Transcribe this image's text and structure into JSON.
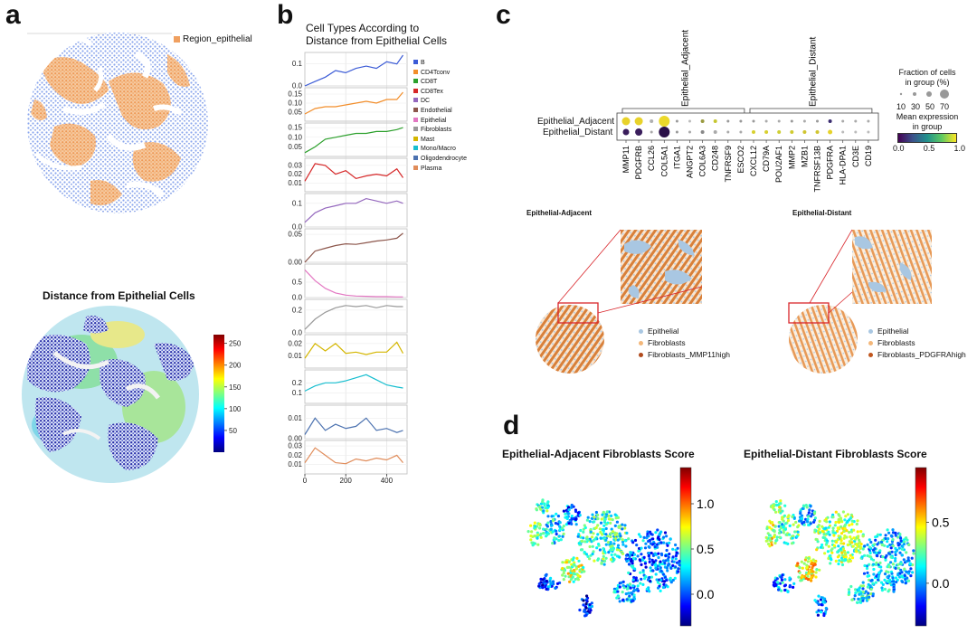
{
  "panel_labels": {
    "a": "a",
    "b": "b",
    "c": "c",
    "d": "d"
  },
  "colors": {
    "epithelial": "#f0a060",
    "blue_cells": "#8ca8ef",
    "fibro_adj": "#d87a34",
    "tissue_blue": "#a9c7e2",
    "line_grid": "#d9d9d9"
  },
  "panel_a": {
    "legend_label": "Region_epithelial",
    "distance_title": "Distance from Epithelial Cells",
    "colorbar": {
      "ticks": [
        "250",
        "200",
        "150",
        "100",
        "50"
      ],
      "min": 0,
      "max": 270
    }
  },
  "panel_b": {
    "title_line1": "Cell Types According to",
    "title_line2": "Distance from Epithelial Cells",
    "x_ticks": [
      "0",
      "200",
      "400"
    ],
    "legend": [
      {
        "name": "B",
        "color": "#3b5bd6"
      },
      {
        "name": "CD4Tconv",
        "color": "#f28e2b"
      },
      {
        "name": "CD8T",
        "color": "#2ca02c"
      },
      {
        "name": "CD8Tex",
        "color": "#d62728"
      },
      {
        "name": "DC",
        "color": "#9467bd"
      },
      {
        "name": "Endothelial",
        "color": "#8c564b"
      },
      {
        "name": "Epithelial",
        "color": "#e377c2"
      },
      {
        "name": "Fibroblasts",
        "color": "#999999"
      },
      {
        "name": "Mast",
        "color": "#d4b600"
      },
      {
        "name": "Mono/Macro",
        "color": "#17becf"
      },
      {
        "name": "Oligodendrocyte",
        "color": "#4c72b0"
      },
      {
        "name": "Plasma",
        "color": "#e08c5a"
      }
    ]
  },
  "chart_data": {
    "type": "line",
    "title": "Cell Types According to Distance from Epithelial Cells",
    "xlabel": "",
    "ylabel": "",
    "x": [
      0,
      50,
      100,
      150,
      200,
      250,
      300,
      350,
      400,
      450,
      480
    ],
    "xlim": [
      0,
      500
    ],
    "series": [
      {
        "name": "B",
        "color": "#3b5bd6",
        "ylim": [
          0,
          0.14
        ],
        "yticks": [
          "0.1",
          "0.0"
        ],
        "ytick_values": [
          0.1,
          0.0
        ],
        "values": [
          0.0,
          0.02,
          0.04,
          0.07,
          0.06,
          0.08,
          0.09,
          0.08,
          0.11,
          0.1,
          0.14
        ]
      },
      {
        "name": "CD4Tconv",
        "color": "#f28e2b",
        "ylim": [
          0,
          0.17
        ],
        "yticks": [
          "0.15",
          "0.10",
          "0.05"
        ],
        "ytick_values": [
          0.15,
          0.1,
          0.05
        ],
        "values": [
          0.04,
          0.07,
          0.08,
          0.08,
          0.09,
          0.1,
          0.11,
          0.1,
          0.12,
          0.12,
          0.16
        ]
      },
      {
        "name": "CD8T",
        "color": "#2ca02c",
        "ylim": [
          0,
          0.16
        ],
        "yticks": [
          "0.15",
          "0.10",
          "0.05"
        ],
        "ytick_values": [
          0.15,
          0.1,
          0.05
        ],
        "values": [
          0.02,
          0.05,
          0.09,
          0.1,
          0.11,
          0.12,
          0.12,
          0.13,
          0.13,
          0.14,
          0.15
        ]
      },
      {
        "name": "CD8Tex",
        "color": "#d62728",
        "ylim": [
          0,
          0.035
        ],
        "yticks": [
          "0.03",
          "0.02",
          "0.01"
        ],
        "ytick_values": [
          0.03,
          0.02,
          0.01
        ],
        "values": [
          0.012,
          0.032,
          0.03,
          0.02,
          0.024,
          0.015,
          0.018,
          0.02,
          0.018,
          0.026,
          0.016
        ]
      },
      {
        "name": "DC",
        "color": "#9467bd",
        "ylim": [
          0,
          0.13
        ],
        "yticks": [
          "0.1",
          "0.0"
        ],
        "ytick_values": [
          0.1,
          0.0
        ],
        "values": [
          0.02,
          0.06,
          0.08,
          0.09,
          0.1,
          0.1,
          0.12,
          0.11,
          0.1,
          0.11,
          0.1
        ]
      },
      {
        "name": "Endothelial",
        "color": "#8c564b",
        "ylim": [
          0,
          0.055
        ],
        "yticks": [
          "0.05",
          "0.00"
        ],
        "ytick_values": [
          0.05,
          0.0
        ],
        "values": [
          0.0,
          0.02,
          0.025,
          0.03,
          0.033,
          0.032,
          0.035,
          0.038,
          0.04,
          0.043,
          0.052
        ]
      },
      {
        "name": "Epithelial",
        "color": "#e377c2",
        "ylim": [
          0,
          1.0
        ],
        "yticks": [
          "0.5",
          "0.0"
        ],
        "ytick_values": [
          0.5,
          0.0
        ],
        "values": [
          0.9,
          0.55,
          0.3,
          0.15,
          0.08,
          0.05,
          0.04,
          0.03,
          0.03,
          0.02,
          0.02
        ]
      },
      {
        "name": "Fibroblasts",
        "color": "#999999",
        "ylim": [
          0,
          0.27
        ],
        "yticks": [
          "0.2",
          "0.0"
        ],
        "ytick_values": [
          0.2,
          0.0
        ],
        "values": [
          0.03,
          0.12,
          0.18,
          0.22,
          0.24,
          0.23,
          0.24,
          0.22,
          0.24,
          0.23,
          0.23
        ]
      },
      {
        "name": "Mast",
        "color": "#d4b600",
        "ylim": [
          0,
          0.025
        ],
        "yticks": [
          "0.02",
          "0.01"
        ],
        "ytick_values": [
          0.02,
          0.01
        ],
        "values": [
          0.008,
          0.02,
          0.014,
          0.02,
          0.012,
          0.013,
          0.011,
          0.013,
          0.013,
          0.021,
          0.012
        ]
      },
      {
        "name": "Mono/Macro",
        "color": "#17becf",
        "ylim": [
          0,
          0.3
        ],
        "yticks": [
          "0.2",
          "0.1"
        ],
        "ytick_values": [
          0.2,
          0.1
        ],
        "values": [
          0.12,
          0.17,
          0.2,
          0.2,
          0.22,
          0.25,
          0.28,
          0.23,
          0.18,
          0.16,
          0.15
        ]
      },
      {
        "name": "Oligodendrocyte",
        "color": "#4c72b0",
        "ylim": [
          0,
          0.015
        ],
        "yticks": [
          "0.01",
          "0.00"
        ],
        "ytick_values": [
          0.01,
          0.0
        ],
        "values": [
          0.002,
          0.01,
          0.004,
          0.007,
          0.005,
          0.006,
          0.01,
          0.004,
          0.005,
          0.003,
          0.004
        ]
      },
      {
        "name": "Plasma",
        "color": "#e08c5a",
        "ylim": [
          0,
          0.033
        ],
        "yticks": [
          "0.03",
          "0.02",
          "0.01"
        ],
        "ytick_values": [
          0.03,
          0.02,
          0.01
        ],
        "values": [
          0.012,
          0.028,
          0.02,
          0.012,
          0.011,
          0.016,
          0.014,
          0.017,
          0.015,
          0.02,
          0.012
        ]
      }
    ]
  },
  "panel_c": {
    "dotplot": {
      "group_label_adjacent": "Epithelial_Adjacent",
      "group_label_distant": "Epithelial_Distant",
      "rows": [
        "Epithelial_Adjacent",
        "Epithelial_Distant"
      ],
      "genes_adjacent": [
        "MMP11",
        "PDGFRB",
        "CCL26",
        "COL5A1",
        "ITGA1",
        "ANGPT2",
        "COL6A3",
        "CD248",
        "TNFRSF9",
        "ESCO2"
      ],
      "genes_distant": [
        "CXCL12",
        "CD79A",
        "POU2AF1",
        "MMP2",
        "MZB1",
        "TNFRSF13B",
        "PDGFRA",
        "HLA-DPA1",
        "CD3E",
        "CD19"
      ],
      "adjacent_row": [
        {
          "size": 8,
          "color": "#e8d22a"
        },
        {
          "size": 8,
          "color": "#e8d22a"
        },
        {
          "size": 3,
          "color": "#b0b0b0"
        },
        {
          "size": 11,
          "color": "#ecd92a"
        },
        {
          "size": 2,
          "color": "#999"
        },
        {
          "size": 2,
          "color": "#bbb"
        },
        {
          "size": 3,
          "color": "#9a9a40"
        },
        {
          "size": 3,
          "color": "#c6c630"
        },
        {
          "size": 2,
          "color": "#999"
        },
        {
          "size": 2,
          "color": "#999"
        },
        {
          "size": 2,
          "color": "#999"
        },
        {
          "size": 2,
          "color": "#aaa"
        },
        {
          "size": 2,
          "color": "#aaa"
        },
        {
          "size": 2,
          "color": "#999"
        },
        {
          "size": 2,
          "color": "#aaa"
        },
        {
          "size": 2,
          "color": "#999"
        },
        {
          "size": 3,
          "color": "#3b2d70"
        },
        {
          "size": 2,
          "color": "#aaa"
        },
        {
          "size": 2,
          "color": "#aaa"
        },
        {
          "size": 2,
          "color": "#aaa"
        }
      ],
      "distant_row": [
        {
          "size": 6,
          "color": "#3a1e5c"
        },
        {
          "size": 7,
          "color": "#3a1e5c"
        },
        {
          "size": 2,
          "color": "#aaa"
        },
        {
          "size": 11,
          "color": "#2a0f48"
        },
        {
          "size": 2,
          "color": "#999"
        },
        {
          "size": 2,
          "color": "#aaa"
        },
        {
          "size": 3,
          "color": "#888"
        },
        {
          "size": 3,
          "color": "#aaa"
        },
        {
          "size": 2,
          "color": "#aaa"
        },
        {
          "size": 2,
          "color": "#aaa"
        },
        {
          "size": 3,
          "color": "#d8d030"
        },
        {
          "size": 3,
          "color": "#d8d030"
        },
        {
          "size": 3,
          "color": "#cfcf35"
        },
        {
          "size": 3,
          "color": "#d0cb30"
        },
        {
          "size": 3,
          "color": "#d0c530"
        },
        {
          "size": 3,
          "color": "#d0c530"
        },
        {
          "size": 4,
          "color": "#e6d22a"
        },
        {
          "size": 2,
          "color": "#bbb"
        },
        {
          "size": 2,
          "color": "#bbb"
        },
        {
          "size": 2,
          "color": "#bbb"
        }
      ],
      "size_legend_title_1": "Fraction of cells",
      "size_legend_title_2": "in group (%)",
      "size_legend_ticks": [
        "10",
        "30",
        "50",
        "70"
      ],
      "color_legend_title_1": "Mean expression",
      "color_legend_title_2": "in group",
      "color_legend_ticks": [
        "0.0",
        "0.5",
        "1.0"
      ]
    },
    "tissue_adjacent": {
      "title": "Epithelial-Adjacent",
      "legend": [
        {
          "name": "Epithelial",
          "color": "#a9c7e2"
        },
        {
          "name": "Fibroblasts",
          "color": "#f3b77a"
        },
        {
          "name": "Fibroblasts_MMP11high",
          "color": "#b04a1c"
        }
      ]
    },
    "tissue_distant": {
      "title": "Epithelial-Distant",
      "legend": [
        {
          "name": "Epithelial",
          "color": "#a9c7e2"
        },
        {
          "name": "Fibroblasts",
          "color": "#f3b77a"
        },
        {
          "name": "Fibroblasts_PDGFRAhigh",
          "color": "#c0561e"
        }
      ]
    }
  },
  "panel_d": {
    "adjacent_title": "Epithelial-Adjacent Fibroblasts Score",
    "distant_title": "Epithelial-Distant Fibroblasts Score",
    "adjacent_ticks": [
      "1.0",
      "0.5",
      "0.0"
    ],
    "adjacent_tick_values": [
      1.0,
      0.5,
      0.0
    ],
    "adjacent_range": [
      -0.35,
      1.4
    ],
    "distant_ticks": [
      "0.5",
      "0.0"
    ],
    "distant_tick_values": [
      0.5,
      0.0
    ],
    "distant_range": [
      -0.35,
      0.95
    ]
  }
}
